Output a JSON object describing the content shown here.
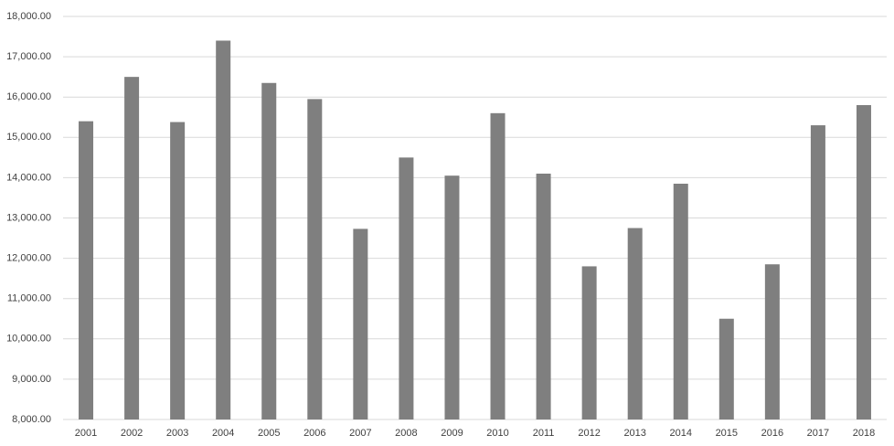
{
  "chart_data": {
    "type": "bar",
    "categories": [
      "2001",
      "2002",
      "2003",
      "2004",
      "2005",
      "2006",
      "2007",
      "2008",
      "2009",
      "2010",
      "2011",
      "2012",
      "2013",
      "2014",
      "2015",
      "2016",
      "2017",
      "2018"
    ],
    "values": [
      15400,
      16500,
      15380,
      17400,
      16350,
      15950,
      12730,
      14500,
      14050,
      15600,
      14100,
      11800,
      12750,
      13850,
      10500,
      11850,
      15300,
      15800
    ],
    "color": "#7f7f7f",
    "ylim": [
      8000,
      18000
    ],
    "yticks": [
      {
        "value": 8000,
        "label": "8,000.00"
      },
      {
        "value": 9000,
        "label": "9,000.00"
      },
      {
        "value": 10000,
        "label": "10,000.00"
      },
      {
        "value": 11000,
        "label": "11,000.00"
      },
      {
        "value": 12000,
        "label": "12,000.00"
      },
      {
        "value": 13000,
        "label": "13,000.00"
      },
      {
        "value": 14000,
        "label": "14,000.00"
      },
      {
        "value": 15000,
        "label": "15,000.00"
      },
      {
        "value": 16000,
        "label": "16,000.00"
      },
      {
        "value": 17000,
        "label": "17,000.00"
      },
      {
        "value": 18000,
        "label": "18,000.00"
      }
    ],
    "grid": true
  }
}
